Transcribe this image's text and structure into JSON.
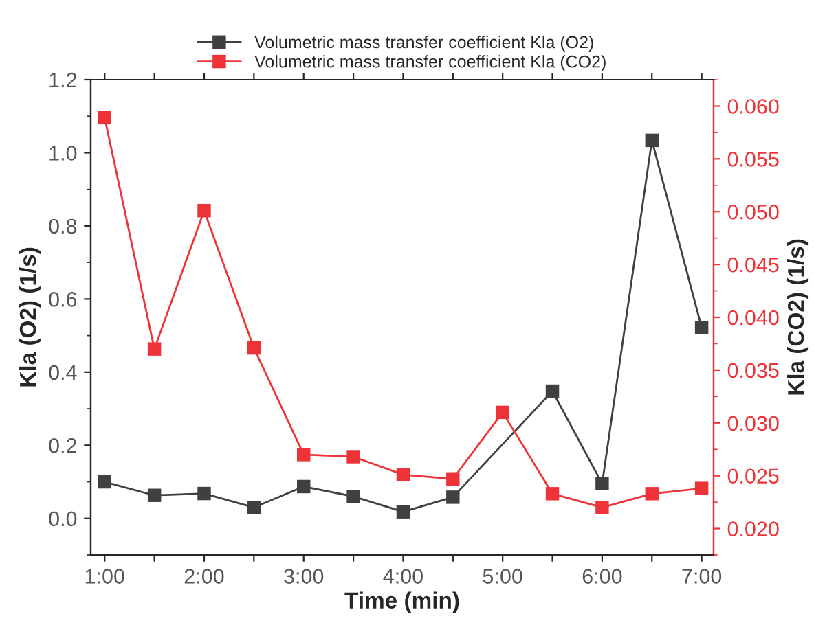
{
  "chart_data": {
    "type": "line",
    "xlabel": "Time (min)",
    "ylabel": "Kla (O2) (1/s)",
    "y2label": "Kla (CO2) (1/s)",
    "x": [
      1,
      1.5,
      2,
      2.5,
      3,
      3.5,
      4,
      4.5,
      5,
      5.5,
      6,
      6.5,
      7
    ],
    "series": [
      {
        "name": "Volumetric mass transfer coefficient Kla (O2)",
        "color": "#404040",
        "x": [
          1,
          1.5,
          2,
          2.5,
          3,
          3.5,
          4,
          4.5,
          5.5,
          6,
          6.5,
          7
        ],
        "values": [
          0.1,
          0.063,
          0.068,
          0.03,
          0.087,
          0.06,
          0.018,
          0.058,
          0.348,
          0.095,
          1.034,
          0.522
        ]
      },
      {
        "name": "Volumetric mass transfer coefficient Kla (CO2)",
        "color": "#ee3338",
        "axis": "y2",
        "values": [
          0.0589,
          0.037,
          0.0501,
          0.0371,
          0.027,
          0.0268,
          0.0251,
          0.0247,
          0.031,
          0.0233,
          0.022,
          0.0233,
          0.0238
        ]
      }
    ],
    "xlim": [
      0.86,
      7.12
    ],
    "xticks": [
      {
        "value": 1,
        "label": "1:00"
      },
      {
        "value": 1.5,
        "label": null
      },
      {
        "value": 2,
        "label": "2:00"
      },
      {
        "value": 2.5,
        "label": null
      },
      {
        "value": 3,
        "label": "3:00"
      },
      {
        "value": 3.5,
        "label": null
      },
      {
        "value": 4,
        "label": "4:00"
      },
      {
        "value": 4.5,
        "label": null
      },
      {
        "value": 5,
        "label": "5:00"
      },
      {
        "value": 5.5,
        "label": null
      },
      {
        "value": 6,
        "label": "6:00"
      },
      {
        "value": 6.5,
        "label": null
      },
      {
        "value": 7,
        "label": "7:00"
      }
    ],
    "ylim": [
      -0.1,
      1.2
    ],
    "yticks": [
      {
        "value": 0,
        "label": "0.0"
      },
      0.2,
      0.4,
      0.6,
      0.8,
      {
        "value": 1,
        "label": "1.0"
      },
      1.2
    ],
    "y2lim": [
      0.0175,
      0.0625
    ],
    "y2ticks": [
      {
        "value": 0.02,
        "label": "0.020"
      },
      {
        "value": 0.025,
        "label": "0.025"
      },
      {
        "value": 0.03,
        "label": "0.030"
      },
      {
        "value": 0.035,
        "label": "0.035"
      },
      {
        "value": 0.04,
        "label": "0.040"
      },
      {
        "value": 0.045,
        "label": "0.045"
      },
      {
        "value": 0.05,
        "label": "0.050"
      },
      {
        "value": 0.055,
        "label": "0.055"
      },
      {
        "value": 0.06,
        "label": "0.060"
      }
    ],
    "marker": "square",
    "line_style": "solid",
    "grid": false,
    "legend": "top"
  }
}
